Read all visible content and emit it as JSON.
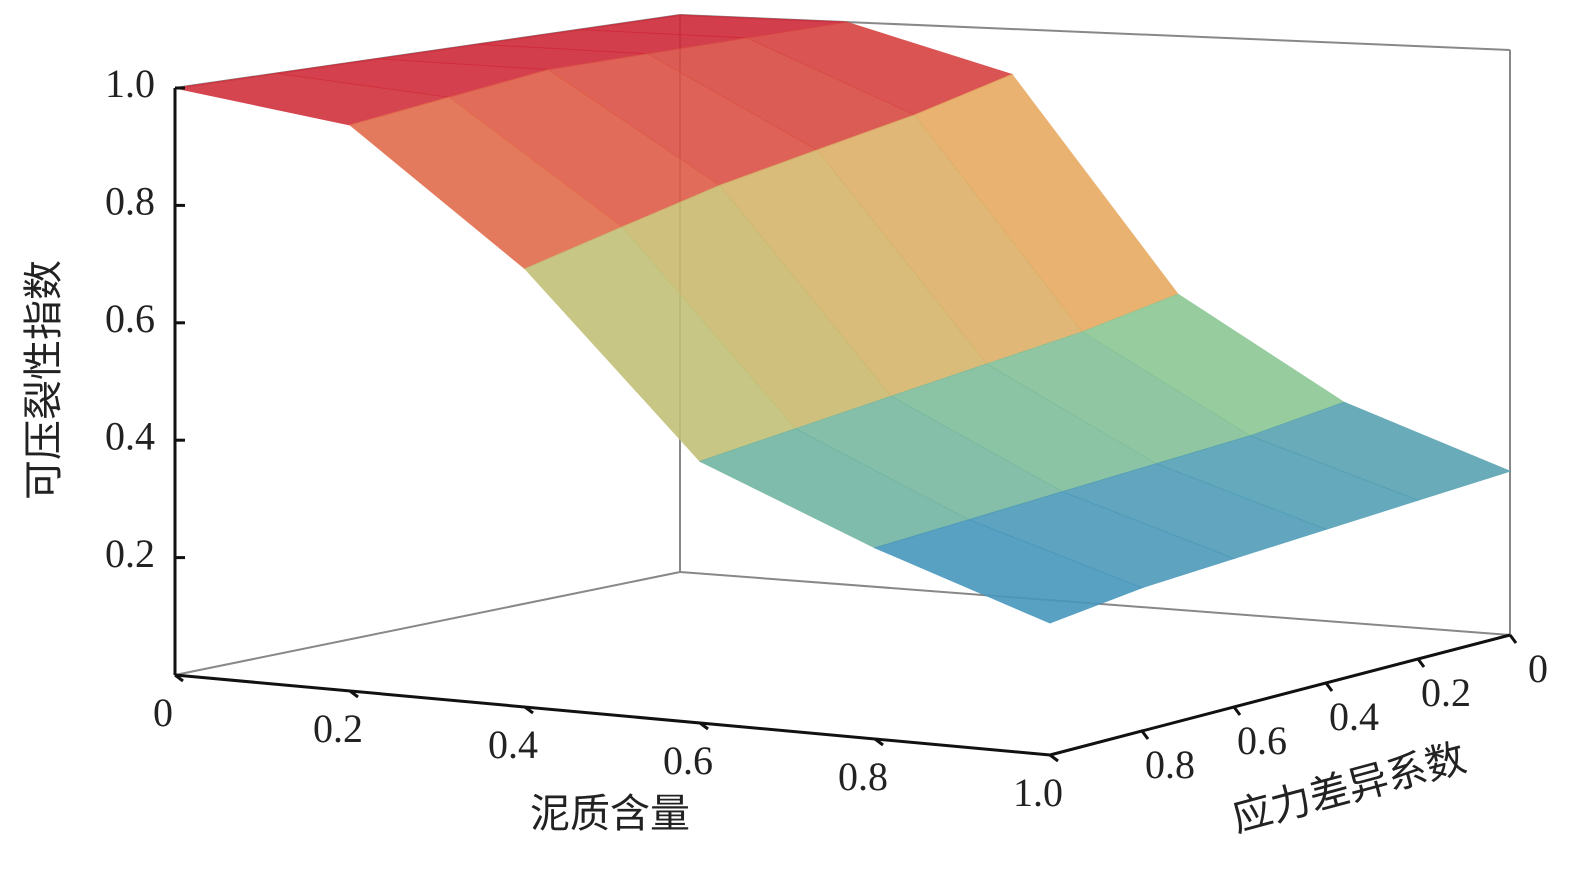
{
  "chart_data": {
    "type": "surface3d",
    "xlabel": "泥质含量",
    "ylabel": "应力差异系数",
    "zlabel": "可压裂性指数",
    "x": [
      0,
      0.2,
      0.4,
      0.6,
      0.8,
      1.0
    ],
    "y": [
      0,
      0.2,
      0.4,
      0.6,
      0.8,
      1.0
    ],
    "z": [
      [
        1,
        1,
        0.92,
        0.55,
        0.38,
        0.28
      ],
      [
        1,
        1,
        0.88,
        0.52,
        0.36,
        0.27
      ],
      [
        1,
        1,
        0.85,
        0.5,
        0.35,
        0.26
      ],
      [
        1,
        1,
        0.82,
        0.48,
        0.34,
        0.25
      ],
      [
        1,
        0.98,
        0.78,
        0.46,
        0.33,
        0.24
      ],
      [
        1,
        0.96,
        0.74,
        0.44,
        0.32,
        0.22
      ]
    ],
    "xlim": [
      0,
      1
    ],
    "ylim": [
      0,
      1
    ],
    "zlim": [
      0,
      1
    ],
    "xticks": [
      0,
      0.2,
      0.4,
      0.6,
      0.8,
      {
        "value": 1,
        "label": "1.0"
      }
    ],
    "yticks": [
      0,
      0.2,
      0.4,
      0.6,
      0.8
    ],
    "zticks": [
      0.2,
      0.4,
      0.6,
      0.8,
      {
        "value": 1,
        "label": "1.0"
      }
    ],
    "colormap": [
      "#5b3b96",
      "#3d8fc2",
      "#9fd48a",
      "#f2a45c",
      "#cf2a3a"
    ]
  }
}
